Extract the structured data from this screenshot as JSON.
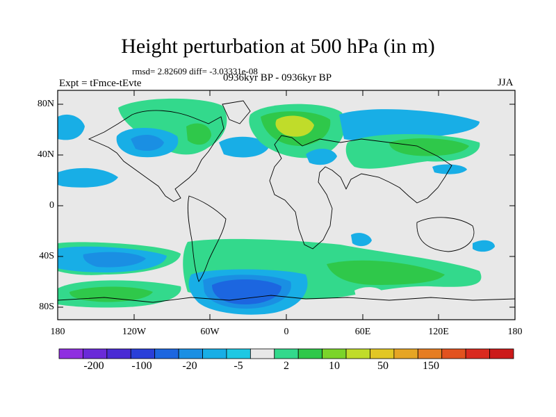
{
  "title": "Height perturbation at 500 hPa (in m)",
  "stats": "rmsd= 2.82609 diff= -3.03331e-08",
  "experiment": "Expt = tFmce-tEvte",
  "period": "0936kyr BP - 0936kyr BP",
  "season": "JJA",
  "lat_ticks": [
    "80N",
    "40N",
    "0",
    "40S",
    "80S"
  ],
  "lon_ticks": [
    "180",
    "120W",
    "60W",
    "0",
    "60E",
    "120E",
    "180"
  ],
  "colorbar": {
    "colors": [
      "#8f2fe0",
      "#6a2ad8",
      "#4a2bd4",
      "#2a3fd9",
      "#1c66e0",
      "#1a8fe3",
      "#18aee6",
      "#1ec8e3",
      "#e8e8e8",
      "#33d98c",
      "#2fc84a",
      "#7bd42a",
      "#c0dc2a",
      "#e2c724",
      "#e6a524",
      "#e67d22",
      "#e2521f",
      "#d92a1f",
      "#cc1a1a"
    ],
    "labels": [
      "-200",
      "-100",
      "-20",
      "-5",
      "2",
      "10",
      "50",
      "150"
    ]
  },
  "colors": {
    "background": "#e8e8e8",
    "light_blue": "#18aee6",
    "mid_blue": "#1a8fe3",
    "dark_blue": "#1c66e0",
    "light_green": "#33d98c",
    "green": "#2fc84a",
    "yellow_green": "#c0dc2a"
  }
}
